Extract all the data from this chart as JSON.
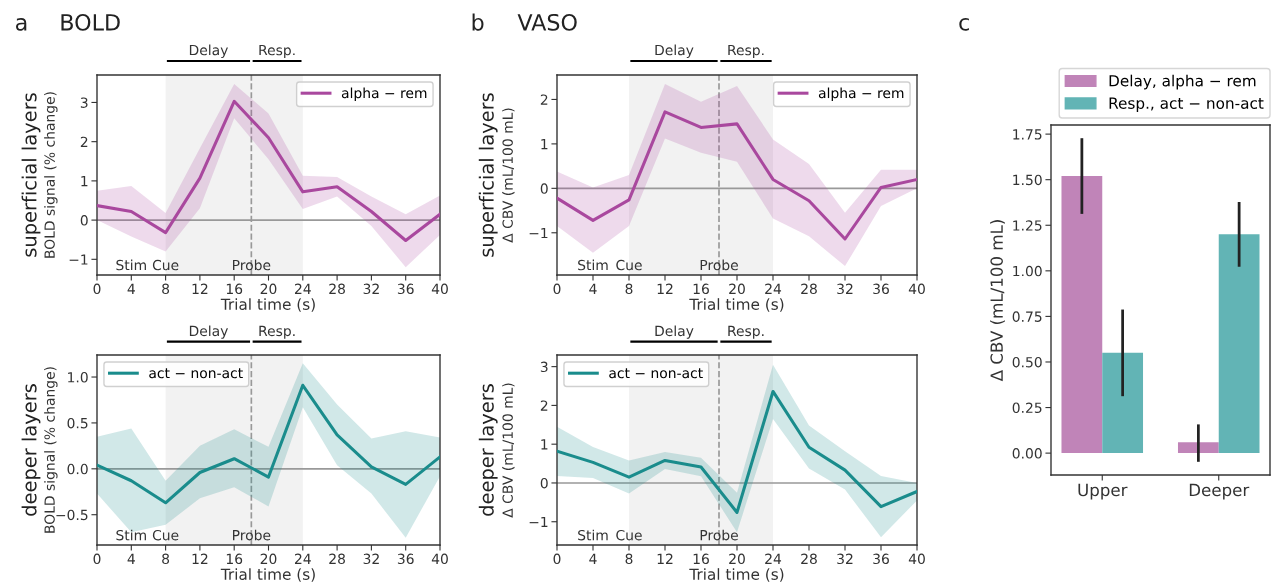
{
  "chart_data": [
    {
      "type": "line",
      "title": "BOLD",
      "ylabel": "BOLD signal (% change)",
      "xlabel": "Trial time (s)",
      "annotations": [
        "a",
        "superficial layers",
        "Stim",
        "Cue"
      ],
      "x": [
        0,
        4,
        8,
        12,
        16,
        20,
        24,
        28,
        32,
        36,
        40
      ],
      "series": [
        {
          "name": "alpha − rem",
          "color": "#a9489e",
          "values": [
            0.37,
            0.22,
            -0.32,
            1.07,
            3.03,
            2.1,
            0.72,
            0.85,
            0.22,
            -0.52,
            0.15
          ],
          "lower": [
            0.0,
            -0.42,
            -0.8,
            0.3,
            2.6,
            1.55,
            0.28,
            0.6,
            -0.15,
            -1.2,
            -0.38
          ],
          "upper": [
            0.75,
            0.87,
            0.18,
            1.83,
            3.47,
            2.72,
            1.13,
            1.1,
            0.6,
            0.15,
            0.63
          ]
        }
      ],
      "xlim": [
        0,
        40
      ],
      "xticks": [
        0,
        4,
        8,
        12,
        16,
        20,
        24,
        28,
        32,
        36,
        40
      ],
      "ylim": [
        -1.4,
        3.7
      ],
      "yticks": [
        {
          "value": -1,
          "label": "−1"
        },
        0,
        1,
        2,
        3
      ],
      "ref_lines": [
        {
          "axis": "y",
          "value": 0,
          "color": "#999999",
          "line_style": "solid"
        },
        {
          "axis": "x",
          "value": 18,
          "label": "Probe",
          "color": "#999999",
          "line_style": "dashed"
        }
      ],
      "bands": [
        {
          "axis": "x",
          "from": 8,
          "to": 18,
          "label": "Delay",
          "color": "#f2f2f2"
        },
        {
          "axis": "x",
          "from": 18,
          "to": 24,
          "label": "Resp.",
          "color": "#f2f2f2"
        }
      ],
      "legend": "top right",
      "grid": false
    },
    {
      "type": "line",
      "title": "VASO",
      "ylabel": "Δ CBV (mL/100 mL)",
      "xlabel": "Trial time (s)",
      "annotations": [
        "b",
        "superficial layers",
        "Stim",
        "Cue"
      ],
      "x": [
        0,
        4,
        8,
        12,
        16,
        20,
        24,
        28,
        32,
        36,
        40
      ],
      "series": [
        {
          "name": "alpha − rem",
          "color": "#a9489e",
          "values": [
            -0.22,
            -0.72,
            -0.26,
            1.72,
            1.37,
            1.45,
            0.2,
            -0.28,
            -1.14,
            0.02,
            0.2
          ],
          "lower": [
            -0.85,
            -1.45,
            -0.85,
            1.12,
            0.8,
            0.6,
            -0.68,
            -1.08,
            -1.75,
            -0.4,
            0.0
          ],
          "upper": [
            0.38,
            0.02,
            0.3,
            2.35,
            1.95,
            2.3,
            1.1,
            0.55,
            -0.55,
            0.42,
            0.42
          ]
        }
      ],
      "xlim": [
        0,
        40
      ],
      "xticks": [
        0,
        4,
        8,
        12,
        16,
        20,
        24,
        28,
        32,
        36,
        40
      ],
      "ylim": [
        -1.95,
        2.55
      ],
      "yticks": [
        {
          "value": -1,
          "label": "−1"
        },
        0,
        1,
        2
      ],
      "ref_lines": [
        {
          "axis": "y",
          "value": 0,
          "color": "#999999",
          "line_style": "solid"
        },
        {
          "axis": "x",
          "value": 18,
          "label": "Probe",
          "color": "#999999",
          "line_style": "dashed"
        }
      ],
      "bands": [
        {
          "axis": "x",
          "from": 8,
          "to": 18,
          "label": "Delay",
          "color": "#f2f2f2"
        },
        {
          "axis": "x",
          "from": 18,
          "to": 24,
          "label": "Resp.",
          "color": "#f2f2f2"
        }
      ],
      "legend": "top right",
      "grid": false
    },
    {
      "type": "line",
      "ylabel": "BOLD signal (% change)",
      "xlabel": "Trial time (s)",
      "annotations": [
        "deeper layers",
        "Stim",
        "Cue"
      ],
      "x": [
        0,
        4,
        8,
        12,
        16,
        20,
        24,
        28,
        32,
        36,
        40
      ],
      "series": [
        {
          "name": "act − non-act",
          "color": "#1a8c8c",
          "values": [
            0.04,
            -0.13,
            -0.37,
            -0.04,
            0.11,
            -0.09,
            0.91,
            0.37,
            0.02,
            -0.17,
            0.13
          ],
          "lower": [
            -0.27,
            -0.69,
            -0.61,
            -0.32,
            -0.2,
            -0.41,
            0.67,
            0.04,
            -0.27,
            -0.75,
            -0.08
          ],
          "upper": [
            0.35,
            0.44,
            -0.13,
            0.25,
            0.43,
            0.24,
            1.15,
            0.7,
            0.33,
            0.41,
            0.34
          ]
        }
      ],
      "xlim": [
        0,
        40
      ],
      "xticks": [
        0,
        4,
        8,
        12,
        16,
        20,
        24,
        28,
        32,
        36,
        40
      ],
      "ylim": [
        -0.83,
        1.24
      ],
      "yticks": [
        {
          "value": -0.5,
          "label": "−0.5"
        },
        {
          "value": 0,
          "label": "0.0"
        },
        0.5,
        {
          "value": 1,
          "label": "1.0"
        }
      ],
      "ref_lines": [
        {
          "axis": "y",
          "value": 0,
          "color": "#999999",
          "line_style": "solid"
        },
        {
          "axis": "x",
          "value": 18,
          "label": "Probe",
          "color": "#999999",
          "line_style": "dashed"
        }
      ],
      "bands": [
        {
          "axis": "x",
          "from": 8,
          "to": 18,
          "label": "Delay",
          "color": "#f2f2f2"
        },
        {
          "axis": "x",
          "from": 18,
          "to": 24,
          "label": "Resp.",
          "color": "#f2f2f2"
        }
      ],
      "legend": "top left",
      "grid": false
    },
    {
      "type": "line",
      "ylabel": "Δ CBV (mL/100 mL)",
      "xlabel": "Trial time (s)",
      "annotations": [
        "deeper layers",
        "Stim",
        "Cue"
      ],
      "x": [
        0,
        4,
        8,
        12,
        16,
        20,
        24,
        28,
        32,
        36,
        40
      ],
      "series": [
        {
          "name": "act − non-act",
          "color": "#1a8c8c",
          "values": [
            0.82,
            0.53,
            0.15,
            0.58,
            0.41,
            -0.76,
            2.36,
            0.92,
            0.33,
            -0.61,
            -0.22
          ],
          "lower": [
            0.18,
            0.13,
            -0.27,
            0.36,
            0.17,
            -1.27,
            1.65,
            0.37,
            -0.17,
            -1.4,
            -0.45
          ],
          "upper": [
            1.45,
            0.93,
            0.58,
            0.8,
            0.65,
            -0.25,
            3.05,
            1.48,
            0.82,
            0.18,
            0.0
          ]
        }
      ],
      "xlim": [
        0,
        40
      ],
      "xticks": [
        0,
        4,
        8,
        12,
        16,
        20,
        24,
        28,
        32,
        36,
        40
      ],
      "ylim": [
        -1.6,
        3.3
      ],
      "yticks": [
        {
          "value": -1,
          "label": "−1"
        },
        0,
        1,
        2,
        3
      ],
      "ref_lines": [
        {
          "axis": "y",
          "value": 0,
          "color": "#999999",
          "line_style": "solid"
        },
        {
          "axis": "x",
          "value": 18,
          "label": "Probe",
          "color": "#999999",
          "line_style": "dashed"
        }
      ],
      "bands": [
        {
          "axis": "x",
          "from": 8,
          "to": 18,
          "label": "Delay",
          "color": "#f2f2f2"
        },
        {
          "axis": "x",
          "from": 18,
          "to": 24,
          "label": "Resp.",
          "color": "#f2f2f2"
        }
      ],
      "legend": "top left",
      "grid": false
    },
    {
      "type": "bar",
      "ylabel": "Δ CBV (mL/100 mL)",
      "annotations": [
        "c"
      ],
      "categories": [
        "Upper",
        "Deeper"
      ],
      "series": [
        {
          "name": "Delay, alpha − rem",
          "color": "#c084b8",
          "values": [
            1.52,
            0.06
          ],
          "errors": [
            [
              1.32,
              1.72
            ],
            [
              -0.04,
              0.15
            ]
          ]
        },
        {
          "name": "Resp., act − non-act",
          "color": "#62b4b5",
          "values": [
            0.55,
            1.2
          ],
          "errors": [
            [
              0.32,
              0.78
            ],
            [
              1.03,
              1.37
            ]
          ]
        }
      ],
      "ylim": [
        -0.12,
        1.8
      ],
      "yticks": [
        {
          "value": 0,
          "label": "0.00"
        },
        {
          "value": 0.25,
          "label": "0.25"
        },
        {
          "value": 0.5,
          "label": "0.50"
        },
        {
          "value": 0.75,
          "label": "0.75"
        },
        {
          "value": 1.0,
          "label": "1.00"
        },
        {
          "value": 1.25,
          "label": "1.25"
        },
        {
          "value": 1.5,
          "label": "1.50"
        },
        {
          "value": 1.75,
          "label": "1.75"
        }
      ],
      "legend": "top",
      "grid": false
    }
  ]
}
